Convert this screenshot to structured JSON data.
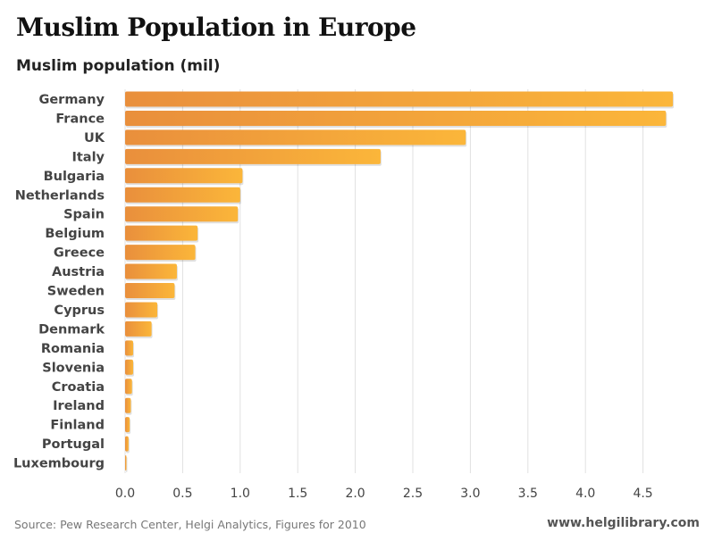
{
  "page": {
    "title": "Muslim Population in Europe",
    "source": "Source: Pew Research Center, Helgi Analytics, Figures for 2010",
    "brand": "www.helgilibrary.com"
  },
  "colors": {
    "bar_start": "#e98f3c",
    "bar_end": "#fbb63a",
    "grid": "#e0e0e0"
  },
  "chart_data": {
    "type": "bar",
    "orientation": "horizontal",
    "title": "Muslim Population in Europe",
    "ylabel": "Muslim population (mil)",
    "xlabel": "",
    "xlim": [
      0,
      4.8
    ],
    "ticks": [
      0.0,
      0.5,
      1.0,
      1.5,
      2.0,
      2.5,
      3.0,
      3.5,
      4.0,
      4.5
    ],
    "tick_labels": [
      "0.0",
      "0.5",
      "1.0",
      "1.5",
      "2.0",
      "2.5",
      "3.0",
      "3.5",
      "4.0",
      "4.5"
    ],
    "grid": true,
    "categories": [
      "Germany",
      "France",
      "UK",
      "Italy",
      "Bulgaria",
      "Netherlands",
      "Spain",
      "Belgium",
      "Greece",
      "Austria",
      "Sweden",
      "Cyprus",
      "Denmark",
      "Romania",
      "Slovenia",
      "Croatia",
      "Ireland",
      "Finland",
      "Portugal",
      "Luxembourg"
    ],
    "values": [
      4.76,
      4.7,
      2.96,
      2.22,
      1.02,
      1.0,
      0.98,
      0.63,
      0.61,
      0.45,
      0.43,
      0.28,
      0.23,
      0.07,
      0.07,
      0.06,
      0.05,
      0.04,
      0.03,
      0.01
    ]
  }
}
